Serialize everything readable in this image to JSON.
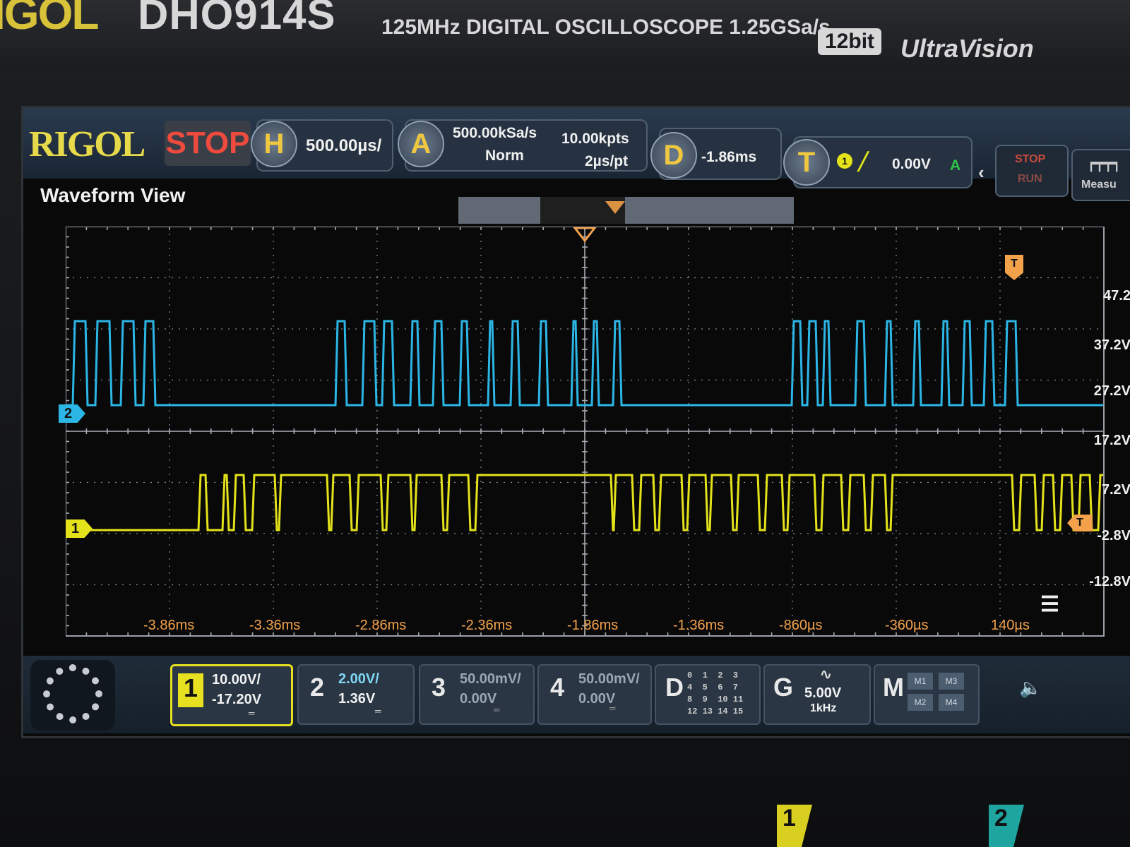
{
  "device": {
    "brand": "IGOL",
    "model": "DHO914S",
    "spec": "125MHz DIGITAL OSCILLOSCOPE 1.25GSa/s",
    "bits": "12bit",
    "series": "UltraVision"
  },
  "topbar": {
    "brand": "RIGOL",
    "run_state": "STOP",
    "horizontal": {
      "icon": "H",
      "timebase": "500.00µs/"
    },
    "acquire": {
      "icon": "A",
      "sample_rate": "500.00kSa/s",
      "memory_depth": "10.00kpts",
      "mode": "Norm",
      "resolution": "2µs/pt"
    },
    "delay": {
      "icon": "D",
      "value": "-1.86ms"
    },
    "trigger": {
      "icon": "T",
      "source": "1",
      "level": "0.00V",
      "mode": "A"
    },
    "stop_run": {
      "stop": "STOP",
      "run": "RUN"
    },
    "measure": {
      "label": "Measu"
    }
  },
  "waveform_view": {
    "title": "Waveform View",
    "trigger_marker": "T",
    "y_labels": [
      "47.2",
      "37.2V",
      "27.2V",
      "17.2V",
      "7.2V",
      "-2.8V",
      "-12.8V"
    ],
    "x_labels": [
      "-3.86ms",
      "-3.36ms",
      "-2.86ms",
      "-2.36ms",
      "-1.86ms",
      "-1.36ms",
      "-860µs",
      "-360µs",
      "140µs"
    ],
    "ch2_marker": "2",
    "ch1_marker": "1",
    "ch1_color": "#e4e21a",
    "ch2_color": "#2cb6e6",
    "trigger_color": "#f3a14a"
  },
  "bottombar": {
    "channels": [
      {
        "num": "1",
        "scale": "10.00V/",
        "offset": "-17.20V",
        "active": true
      },
      {
        "num": "2",
        "scale": "2.00V/",
        "offset": "1.36V",
        "active": false
      },
      {
        "num": "3",
        "scale": "50.00mV/",
        "offset": "0.00V",
        "active": false
      },
      {
        "num": "4",
        "scale": "50.00mV/",
        "offset": "0.00V",
        "active": false
      }
    ],
    "digital": {
      "label": "D",
      "grid": "0  1  2  3\n4  5  6  7\n8  9  10 11\n12 13 14 15"
    },
    "generator": {
      "label": "G",
      "amplitude": "5.00V",
      "frequency": "1kHz"
    },
    "math": {
      "label": "M",
      "items": [
        "M1",
        "M3",
        "M2",
        "M4"
      ]
    }
  },
  "probe_tabs": [
    "1",
    "2"
  ]
}
